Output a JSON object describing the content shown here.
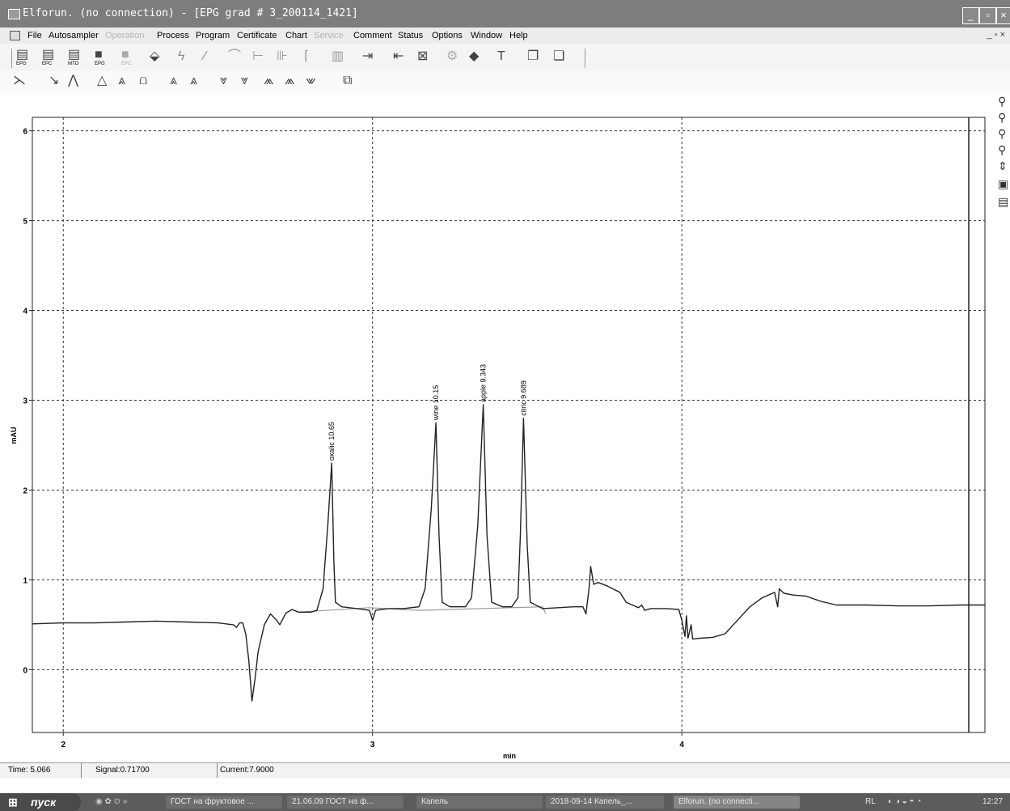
{
  "window": {
    "title": "Elforun. (no connection) - [EPG grad # 3_200114_1421]",
    "controls": [
      "_",
      "▫",
      "×"
    ]
  },
  "menu": {
    "items": [
      {
        "label": "File",
        "enabled": true
      },
      {
        "label": "Autosampler",
        "enabled": true
      },
      {
        "label": "Operation",
        "enabled": false
      },
      {
        "label": "Process",
        "enabled": true
      },
      {
        "label": "Program",
        "enabled": true
      },
      {
        "label": "Certificate",
        "enabled": true
      },
      {
        "label": "Chart",
        "enabled": true
      },
      {
        "label": "Service",
        "enabled": false
      },
      {
        "label": "Comment",
        "enabled": true
      },
      {
        "label": "Status",
        "enabled": true
      },
      {
        "label": "Options",
        "enabled": true
      },
      {
        "label": "Window",
        "enabled": true
      },
      {
        "label": "Help",
        "enabled": true
      }
    ],
    "mdi_controls": "_ ▫ ×"
  },
  "toolbar1": {
    "icons": [
      "epg-icon",
      "epc-icon",
      "mto-icon",
      "save-epg-icon",
      "epc-disabled-icon",
      "cube-icon",
      "lightning-icon",
      "pencil-icon",
      "waveform-icon",
      "baseline-icon",
      "peak-split-icon",
      "peak-start-icon",
      "histogram-icon",
      "export-icon",
      "import-icon",
      "calibration-icon",
      "settings-icon",
      "eraser-icon",
      "hammer-icon",
      "copy-icon",
      "report-icon"
    ],
    "labels": [
      "EPG",
      "EPC",
      "MTO",
      "EPG",
      "EPC"
    ]
  },
  "toolbar2": {
    "icons": [
      "peak-tool-1-icon",
      "peak-tool-2-icon",
      "peak-tool-3-icon",
      "peak-tool-4-icon",
      "peak-tool-5-icon",
      "peak-tool-6-icon",
      "peak-tool-7-icon",
      "peak-tool-8-icon",
      "peak-tool-9-icon",
      "peak-tool-10-icon",
      "peak-tool-11-icon",
      "peak-tool-12-icon",
      "peak-tool-13-icon",
      "layers-icon"
    ]
  },
  "zoom_toolbar": {
    "icons": [
      "zoom-in-icon",
      "zoom-out-icon",
      "zoom-x-icon",
      "zoom-y-icon",
      "pan-icon",
      "fit-icon",
      "window-icon"
    ]
  },
  "chart_data": {
    "type": "line",
    "xlabel": "min",
    "ylabel": "mAU",
    "xlim": [
      1.9,
      4.98
    ],
    "ylim": [
      -0.7,
      6.15
    ],
    "x_ticks": [
      2,
      3,
      4
    ],
    "y_ticks": [
      0,
      1,
      2,
      3,
      4,
      5,
      6
    ],
    "grid": true,
    "series": [
      {
        "color": "#222222",
        "points": [
          [
            1.9,
            0.51
          ],
          [
            2.0,
            0.52
          ],
          [
            2.1,
            0.52
          ],
          [
            2.2,
            0.53
          ],
          [
            2.3,
            0.54
          ],
          [
            2.4,
            0.53
          ],
          [
            2.5,
            0.52
          ],
          [
            2.55,
            0.5
          ],
          [
            2.56,
            0.47
          ],
          [
            2.57,
            0.52
          ],
          [
            2.58,
            0.52
          ],
          [
            2.59,
            0.4
          ],
          [
            2.6,
            0.1
          ],
          [
            2.61,
            -0.35
          ],
          [
            2.62,
            -0.1
          ],
          [
            2.63,
            0.2
          ],
          [
            2.65,
            0.5
          ],
          [
            2.67,
            0.62
          ],
          [
            2.69,
            0.55
          ],
          [
            2.7,
            0.5
          ],
          [
            2.72,
            0.63
          ],
          [
            2.74,
            0.67
          ],
          [
            2.76,
            0.64
          ],
          [
            2.8,
            0.64
          ],
          [
            2.82,
            0.66
          ],
          [
            2.84,
            0.9
          ],
          [
            2.855,
            1.6
          ],
          [
            2.868,
            2.3
          ],
          [
            2.875,
            1.2
          ],
          [
            2.88,
            0.75
          ],
          [
            2.9,
            0.7
          ],
          [
            2.95,
            0.68
          ],
          [
            2.99,
            0.66
          ],
          [
            3.0,
            0.55
          ],
          [
            3.01,
            0.66
          ],
          [
            3.05,
            0.68
          ],
          [
            3.1,
            0.68
          ],
          [
            3.15,
            0.7
          ],
          [
            3.17,
            0.9
          ],
          [
            3.19,
            1.8
          ],
          [
            3.205,
            2.75
          ],
          [
            3.215,
            1.5
          ],
          [
            3.225,
            0.75
          ],
          [
            3.25,
            0.7
          ],
          [
            3.3,
            0.7
          ],
          [
            3.32,
            0.8
          ],
          [
            3.34,
            1.6
          ],
          [
            3.358,
            2.95
          ],
          [
            3.37,
            1.5
          ],
          [
            3.385,
            0.75
          ],
          [
            3.42,
            0.7
          ],
          [
            3.45,
            0.7
          ],
          [
            3.47,
            0.8
          ],
          [
            3.478,
            1.5
          ],
          [
            3.488,
            2.8
          ],
          [
            3.5,
            1.4
          ],
          [
            3.51,
            0.75
          ],
          [
            3.55,
            0.68
          ],
          [
            3.6,
            0.69
          ],
          [
            3.65,
            0.7
          ],
          [
            3.68,
            0.7
          ],
          [
            3.69,
            0.62
          ],
          [
            3.7,
            0.9
          ],
          [
            3.705,
            1.15
          ],
          [
            3.715,
            0.95
          ],
          [
            3.73,
            0.97
          ],
          [
            3.76,
            0.93
          ],
          [
            3.8,
            0.86
          ],
          [
            3.82,
            0.75
          ],
          [
            3.84,
            0.72
          ],
          [
            3.86,
            0.69
          ],
          [
            3.87,
            0.72
          ],
          [
            3.88,
            0.66
          ],
          [
            3.9,
            0.68
          ],
          [
            3.95,
            0.68
          ],
          [
            3.99,
            0.67
          ],
          [
            4.0,
            0.55
          ],
          [
            4.01,
            0.37
          ],
          [
            4.015,
            0.6
          ],
          [
            4.02,
            0.35
          ],
          [
            4.03,
            0.5
          ],
          [
            4.035,
            0.34
          ],
          [
            4.06,
            0.35
          ],
          [
            4.1,
            0.36
          ],
          [
            4.14,
            0.4
          ],
          [
            4.18,
            0.55
          ],
          [
            4.22,
            0.7
          ],
          [
            4.26,
            0.8
          ],
          [
            4.28,
            0.83
          ],
          [
            4.3,
            0.86
          ],
          [
            4.31,
            0.7
          ],
          [
            4.315,
            0.9
          ],
          [
            4.33,
            0.85
          ],
          [
            4.36,
            0.83
          ],
          [
            4.4,
            0.82
          ],
          [
            4.45,
            0.76
          ],
          [
            4.5,
            0.72
          ],
          [
            4.6,
            0.72
          ],
          [
            4.7,
            0.71
          ],
          [
            4.8,
            0.71
          ],
          [
            4.9,
            0.72
          ],
          [
            4.98,
            0.72
          ]
        ]
      },
      {
        "color": "#9a9a9a",
        "points": [
          [
            2.76,
            0.64
          ],
          [
            2.99,
            0.69
          ],
          [
            3.15,
            0.66
          ],
          [
            3.55,
            0.7
          ],
          [
            3.56,
            0.62
          ]
        ]
      }
    ],
    "peak_labels": [
      {
        "text": "oxalic 10.65",
        "x": 2.868,
        "y": 2.3
      },
      {
        "text": "wine 10.15",
        "x": 3.205,
        "y": 2.75
      },
      {
        "text": "apple 9.343",
        "x": 3.358,
        "y": 2.95
      },
      {
        "text": "citric 9.689",
        "x": 3.488,
        "y": 2.8
      }
    ]
  },
  "status": {
    "time": "Time: 5.066",
    "signal": "Signal:0.71700",
    "current": "Current:7.9000"
  },
  "taskbar": {
    "start": "пуск",
    "tasks": [
      "ГОСТ на фруктовое ...",
      "21.06.09 ГОСТ на ф...",
      "Капель",
      "2018-09-14 Капель_...",
      "Elforun. (no connecti..."
    ],
    "lang": "RL",
    "clock": "12:27"
  }
}
